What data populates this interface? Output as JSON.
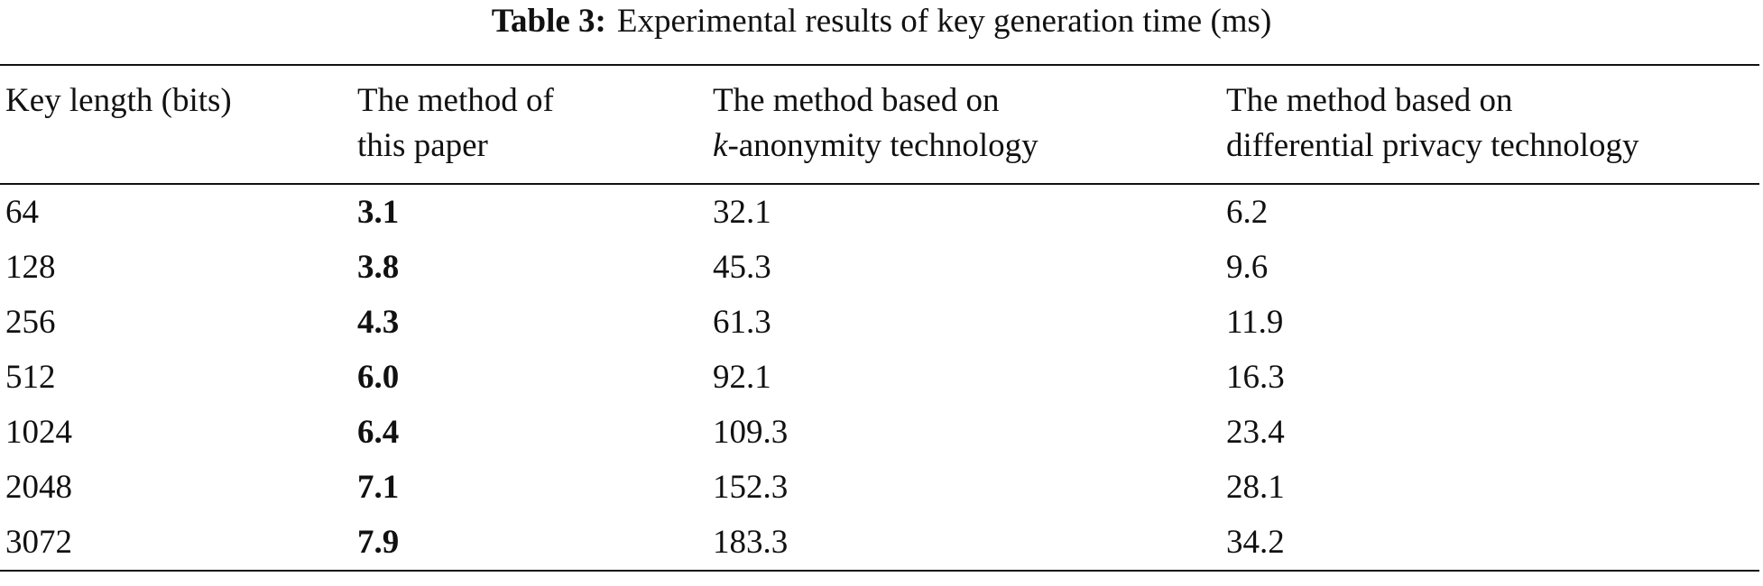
{
  "caption": {
    "label": "Table 3:",
    "text": "Experimental results of key generation time (ms)"
  },
  "table": {
    "header": [
      "Key length (bits)",
      [
        "The method of",
        "this paper"
      ],
      [
        "The method based on",
        "k",
        "-anonymity technology"
      ],
      [
        "The method based on",
        "differential privacy technology"
      ]
    ],
    "rows": [
      [
        "64",
        "3.1",
        "32.1",
        "6.2"
      ],
      [
        "128",
        "3.8",
        "45.3",
        "9.6"
      ],
      [
        "256",
        "4.3",
        "61.3",
        "11.9"
      ],
      [
        "512",
        "6.0",
        "92.1",
        "16.3"
      ],
      [
        "1024",
        "6.4",
        "109.3",
        "23.4"
      ],
      [
        "2048",
        "7.1",
        "152.3",
        "28.1"
      ],
      [
        "3072",
        "7.9",
        "183.3",
        "34.2"
      ]
    ]
  }
}
